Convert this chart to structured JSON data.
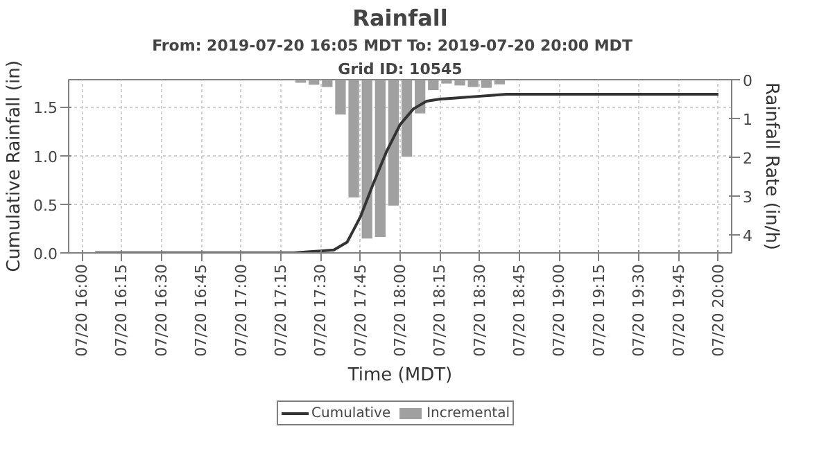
{
  "chart_data": {
    "type": "line",
    "title": "Rainfall",
    "subtitle": "From: 2019-07-20 16:05 MDT    To: 2019-07-20 20:00 MDT",
    "annotations": [
      "Grid ID: 10545"
    ],
    "xlabel": "Time (MDT)",
    "ylabel": "Cumulative Rainfall (in)",
    "y2label": "Rainfall Rate (in/h)",
    "series": [
      {
        "name": "Cumulative",
        "color": "#333333",
        "x": [
          "2019-07-20T16:05",
          "2019-07-20T16:10",
          "2019-07-20T16:15",
          "2019-07-20T16:20",
          "2019-07-20T16:25",
          "2019-07-20T16:30",
          "2019-07-20T16:35",
          "2019-07-20T16:40",
          "2019-07-20T16:45",
          "2019-07-20T16:50",
          "2019-07-20T16:55",
          "2019-07-20T17:00",
          "2019-07-20T17:05",
          "2019-07-20T17:10",
          "2019-07-20T17:15",
          "2019-07-20T17:20",
          "2019-07-20T17:25",
          "2019-07-20T17:30",
          "2019-07-20T17:35",
          "2019-07-20T17:40",
          "2019-07-20T17:45",
          "2019-07-20T17:50",
          "2019-07-20T17:55",
          "2019-07-20T18:00",
          "2019-07-20T18:05",
          "2019-07-20T18:10",
          "2019-07-20T18:15",
          "2019-07-20T18:20",
          "2019-07-20T18:25",
          "2019-07-20T18:30",
          "2019-07-20T18:35",
          "2019-07-20T18:40",
          "2019-07-20T18:45",
          "2019-07-20T18:50",
          "2019-07-20T18:55",
          "2019-07-20T19:00",
          "2019-07-20T19:05",
          "2019-07-20T19:10",
          "2019-07-20T19:15",
          "2019-07-20T19:20",
          "2019-07-20T19:25",
          "2019-07-20T19:30",
          "2019-07-20T19:35",
          "2019-07-20T19:40",
          "2019-07-20T19:45",
          "2019-07-20T19:50",
          "2019-07-20T19:55",
          "2019-07-20T20:00"
        ],
        "values": [
          0,
          0,
          0,
          0,
          0,
          0,
          0,
          0,
          0,
          0,
          0,
          0,
          0,
          0,
          0,
          0,
          0.01,
          0.02,
          0.03,
          0.11,
          0.37,
          0.72,
          1.05,
          1.32,
          1.48,
          1.56,
          1.58,
          1.59,
          1.6,
          1.61,
          1.62,
          1.63,
          1.63,
          1.63,
          1.63,
          1.63,
          1.63,
          1.63,
          1.63,
          1.63,
          1.63,
          1.63,
          1.63,
          1.63,
          1.63,
          1.63,
          1.63,
          1.63
        ]
      },
      {
        "name": "Incremental",
        "type": "bar",
        "axis": "y2",
        "color": "#a0a0a0",
        "x": [
          "2019-07-20T17:22:30",
          "2019-07-20T17:27:30",
          "2019-07-20T17:32:30",
          "2019-07-20T17:37:30",
          "2019-07-20T17:42:30",
          "2019-07-20T17:47:30",
          "2019-07-20T17:52:30",
          "2019-07-20T17:57:30",
          "2019-07-20T18:02:30",
          "2019-07-20T18:07:30",
          "2019-07-20T18:12:30",
          "2019-07-20T18:17:30",
          "2019-07-20T18:22:30",
          "2019-07-20T18:27:30",
          "2019-07-20T18:32:30",
          "2019-07-20T18:37:30"
        ],
        "values": [
          0.08,
          0.13,
          0.19,
          0.9,
          3.04,
          4.1,
          4.06,
          3.25,
          1.99,
          0.87,
          0.27,
          0.1,
          0.15,
          0.19,
          0.21,
          0.12
        ]
      }
    ],
    "xlim": [
      "2019-07-20T15:55",
      "2019-07-20T20:05"
    ],
    "xticks": [
      {
        "value": "2019-07-20T16:00",
        "label": "07/20 16:00"
      },
      {
        "value": "2019-07-20T16:15",
        "label": "07/20 16:15"
      },
      {
        "value": "2019-07-20T16:30",
        "label": "07/20 16:30"
      },
      {
        "value": "2019-07-20T16:45",
        "label": "07/20 16:45"
      },
      {
        "value": "2019-07-20T17:00",
        "label": "07/20 17:00"
      },
      {
        "value": "2019-07-20T17:15",
        "label": "07/20 17:15"
      },
      {
        "value": "2019-07-20T17:30",
        "label": "07/20 17:30"
      },
      {
        "value": "2019-07-20T17:45",
        "label": "07/20 17:45"
      },
      {
        "value": "2019-07-20T18:00",
        "label": "07/20 18:00"
      },
      {
        "value": "2019-07-20T18:15",
        "label": "07/20 18:15"
      },
      {
        "value": "2019-07-20T18:30",
        "label": "07/20 18:30"
      },
      {
        "value": "2019-07-20T18:45",
        "label": "07/20 18:45"
      },
      {
        "value": "2019-07-20T19:00",
        "label": "07/20 19:00"
      },
      {
        "value": "2019-07-20T19:15",
        "label": "07/20 19:15"
      },
      {
        "value": "2019-07-20T19:30",
        "label": "07/20 19:30"
      },
      {
        "value": "2019-07-20T19:45",
        "label": "07/20 19:45"
      },
      {
        "value": "2019-07-20T20:00",
        "label": "07/20 20:00"
      }
    ],
    "ylim": [
      0,
      1.78
    ],
    "yticks": [
      {
        "value": 0,
        "label": "0.0"
      },
      {
        "value": 0.5,
        "label": "0.5"
      },
      {
        "value": 1,
        "label": "1.0"
      },
      {
        "value": 1.5,
        "label": "1.5"
      }
    ],
    "y2lim": [
      4.47,
      0
    ],
    "y2ticks": [
      0,
      1,
      2,
      3,
      4
    ],
    "grid": true,
    "legend": "bottom",
    "marker": "none",
    "line_style": "solid"
  }
}
